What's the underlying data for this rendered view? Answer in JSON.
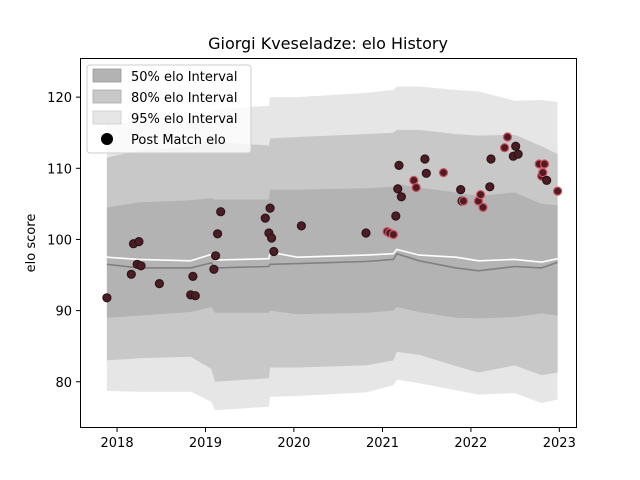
{
  "chart_data": {
    "type": "line",
    "title": "Giorgi Kveseladze: elo History",
    "xlabel": "",
    "ylabel": "elo score",
    "xlim": [
      "2017-08-01",
      "2023-03-15"
    ],
    "ylim": [
      73.5,
      125.5
    ],
    "xticks": [
      "2018",
      "2019",
      "2020",
      "2021",
      "2022",
      "2023"
    ],
    "yticks": [
      80,
      90,
      100,
      110,
      120
    ],
    "legend": {
      "position": "top-left",
      "entries": [
        "50% elo Interval",
        "80% elo Interval",
        "95% elo Interval",
        "Post Match elo"
      ]
    },
    "colors": {
      "band50": "#b3b3b3",
      "band80": "#c8c8c8",
      "band95": "#e6e6e6",
      "median_line": "#808080",
      "mean_line": "#ffffff",
      "point_fill": "#4d1c24",
      "point_edge_dark": "#2a1418",
      "point_edge_red": "#d2505a"
    },
    "bands": {
      "x": [
        "2017-11-20",
        "2018-04-01",
        "2018-11-01",
        "2019-01-25",
        "2019-02-10",
        "2019-09-20",
        "2019-09-25",
        "2020-01-15",
        "2020-10-25",
        "2021-02-15",
        "2021-03-01",
        "2021-06-01",
        "2021-11-01",
        "2022-02-01",
        "2022-07-01",
        "2022-10-20",
        "2022-12-25"
      ],
      "median": [
        96.5,
        96.0,
        96.0,
        96.7,
        96.0,
        96.2,
        96.5,
        96.6,
        96.9,
        97.2,
        98.0,
        97.0,
        96.0,
        95.6,
        96.2,
        96.0,
        96.8
      ],
      "mean": [
        97.5,
        97.2,
        97.0,
        97.9,
        97.1,
        97.3,
        98.2,
        97.5,
        97.8,
        98.0,
        98.6,
        97.8,
        97.5,
        97.0,
        97.2,
        96.8,
        97.3
      ],
      "p50_low": [
        89.0,
        89.3,
        89.8,
        90.5,
        89.7,
        89.7,
        90.0,
        89.5,
        89.7,
        90.0,
        90.5,
        89.8,
        89.0,
        88.9,
        89.1,
        89.6,
        89.3
      ],
      "p50_high": [
        104.5,
        105.2,
        105.5,
        105.8,
        105.6,
        105.6,
        107.0,
        107.0,
        107.2,
        107.4,
        107.8,
        107.3,
        106.6,
        106.1,
        106.6,
        105.0,
        104.8
      ],
      "p80_low": [
        83.0,
        83.3,
        83.5,
        81.8,
        80.0,
        80.5,
        82.0,
        82.0,
        82.3,
        83.0,
        84.2,
        83.8,
        82.2,
        81.3,
        82.3,
        80.9,
        81.3
      ],
      "p80_high": [
        111.5,
        112.5,
        113.0,
        114.0,
        113.7,
        113.2,
        114.2,
        114.4,
        114.8,
        115.0,
        115.4,
        115.4,
        114.8,
        114.6,
        114.7,
        113.1,
        112.0
      ],
      "p95_low": [
        78.7,
        78.6,
        78.6,
        77.2,
        76.0,
        76.5,
        77.9,
        78.0,
        78.5,
        79.5,
        80.3,
        79.8,
        78.8,
        78.2,
        78.4,
        77.0,
        77.5
      ],
      "p95_high": [
        116.5,
        116.4,
        116.4,
        118.0,
        118.3,
        118.8,
        120.0,
        120.0,
        120.6,
        121.0,
        121.5,
        121.5,
        121.0,
        120.8,
        119.5,
        119.6,
        119.3
      ]
    },
    "points": [
      {
        "x": "2017-11-20",
        "y": 91.8,
        "edge": "dark"
      },
      {
        "x": "2018-03-01",
        "y": 95.1,
        "edge": "dark"
      },
      {
        "x": "2018-03-10",
        "y": 99.4,
        "edge": "dark"
      },
      {
        "x": "2018-03-25",
        "y": 96.5,
        "edge": "dark"
      },
      {
        "x": "2018-04-01",
        "y": 99.7,
        "edge": "dark"
      },
      {
        "x": "2018-04-10",
        "y": 96.3,
        "edge": "dark"
      },
      {
        "x": "2018-06-25",
        "y": 93.8,
        "edge": "dark"
      },
      {
        "x": "2018-11-01",
        "y": 92.2,
        "edge": "dark"
      },
      {
        "x": "2018-11-10",
        "y": 94.8,
        "edge": "dark"
      },
      {
        "x": "2018-11-20",
        "y": 92.1,
        "edge": "dark"
      },
      {
        "x": "2019-02-05",
        "y": 95.8,
        "edge": "dark"
      },
      {
        "x": "2019-02-12",
        "y": 97.7,
        "edge": "dark"
      },
      {
        "x": "2019-02-20",
        "y": 100.8,
        "edge": "dark"
      },
      {
        "x": "2019-03-05",
        "y": 103.9,
        "edge": "dark"
      },
      {
        "x": "2019-09-05",
        "y": 103.0,
        "edge": "dark"
      },
      {
        "x": "2019-09-20",
        "y": 100.9,
        "edge": "dark"
      },
      {
        "x": "2019-09-25",
        "y": 104.4,
        "edge": "dark"
      },
      {
        "x": "2019-10-01",
        "y": 100.2,
        "edge": "dark"
      },
      {
        "x": "2019-10-10",
        "y": 98.3,
        "edge": "dark"
      },
      {
        "x": "2020-02-01",
        "y": 101.9,
        "edge": "dark"
      },
      {
        "x": "2020-10-25",
        "y": 100.9,
        "edge": "dark"
      },
      {
        "x": "2021-01-20",
        "y": 101.1,
        "edge": "red"
      },
      {
        "x": "2021-01-30",
        "y": 100.9,
        "edge": "red"
      },
      {
        "x": "2021-02-15",
        "y": 100.7,
        "edge": "red"
      },
      {
        "x": "2021-02-25",
        "y": 103.3,
        "edge": "dark"
      },
      {
        "x": "2021-03-05",
        "y": 107.1,
        "edge": "dark"
      },
      {
        "x": "2021-03-10",
        "y": 110.4,
        "edge": "dark"
      },
      {
        "x": "2021-03-20",
        "y": 106.0,
        "edge": "dark"
      },
      {
        "x": "2021-05-10",
        "y": 108.3,
        "edge": "red"
      },
      {
        "x": "2021-05-20",
        "y": 107.3,
        "edge": "red"
      },
      {
        "x": "2021-06-25",
        "y": 111.3,
        "edge": "dark"
      },
      {
        "x": "2021-07-01",
        "y": 109.3,
        "edge": "dark"
      },
      {
        "x": "2021-09-10",
        "y": 109.4,
        "edge": "red"
      },
      {
        "x": "2021-11-20",
        "y": 107.0,
        "edge": "dark"
      },
      {
        "x": "2021-11-25",
        "y": 105.4,
        "edge": "dark"
      },
      {
        "x": "2021-12-01",
        "y": 105.4,
        "edge": "red"
      },
      {
        "x": "2022-02-01",
        "y": 105.4,
        "edge": "red"
      },
      {
        "x": "2022-02-10",
        "y": 106.3,
        "edge": "red"
      },
      {
        "x": "2022-02-20",
        "y": 104.5,
        "edge": "red"
      },
      {
        "x": "2022-03-20",
        "y": 107.4,
        "edge": "dark"
      },
      {
        "x": "2022-03-25",
        "y": 111.3,
        "edge": "dark"
      },
      {
        "x": "2022-05-20",
        "y": 112.9,
        "edge": "red"
      },
      {
        "x": "2022-06-01",
        "y": 114.4,
        "edge": "red"
      },
      {
        "x": "2022-06-25",
        "y": 111.7,
        "edge": "dark"
      },
      {
        "x": "2022-07-05",
        "y": 113.1,
        "edge": "dark"
      },
      {
        "x": "2022-07-15",
        "y": 112.0,
        "edge": "dark"
      },
      {
        "x": "2022-10-10",
        "y": 110.6,
        "edge": "red"
      },
      {
        "x": "2022-10-20",
        "y": 108.9,
        "edge": "red"
      },
      {
        "x": "2022-10-25",
        "y": 109.4,
        "edge": "red"
      },
      {
        "x": "2022-11-01",
        "y": 110.6,
        "edge": "red"
      },
      {
        "x": "2022-11-10",
        "y": 108.3,
        "edge": "dark"
      },
      {
        "x": "2022-12-25",
        "y": 106.8,
        "edge": "red"
      }
    ]
  }
}
